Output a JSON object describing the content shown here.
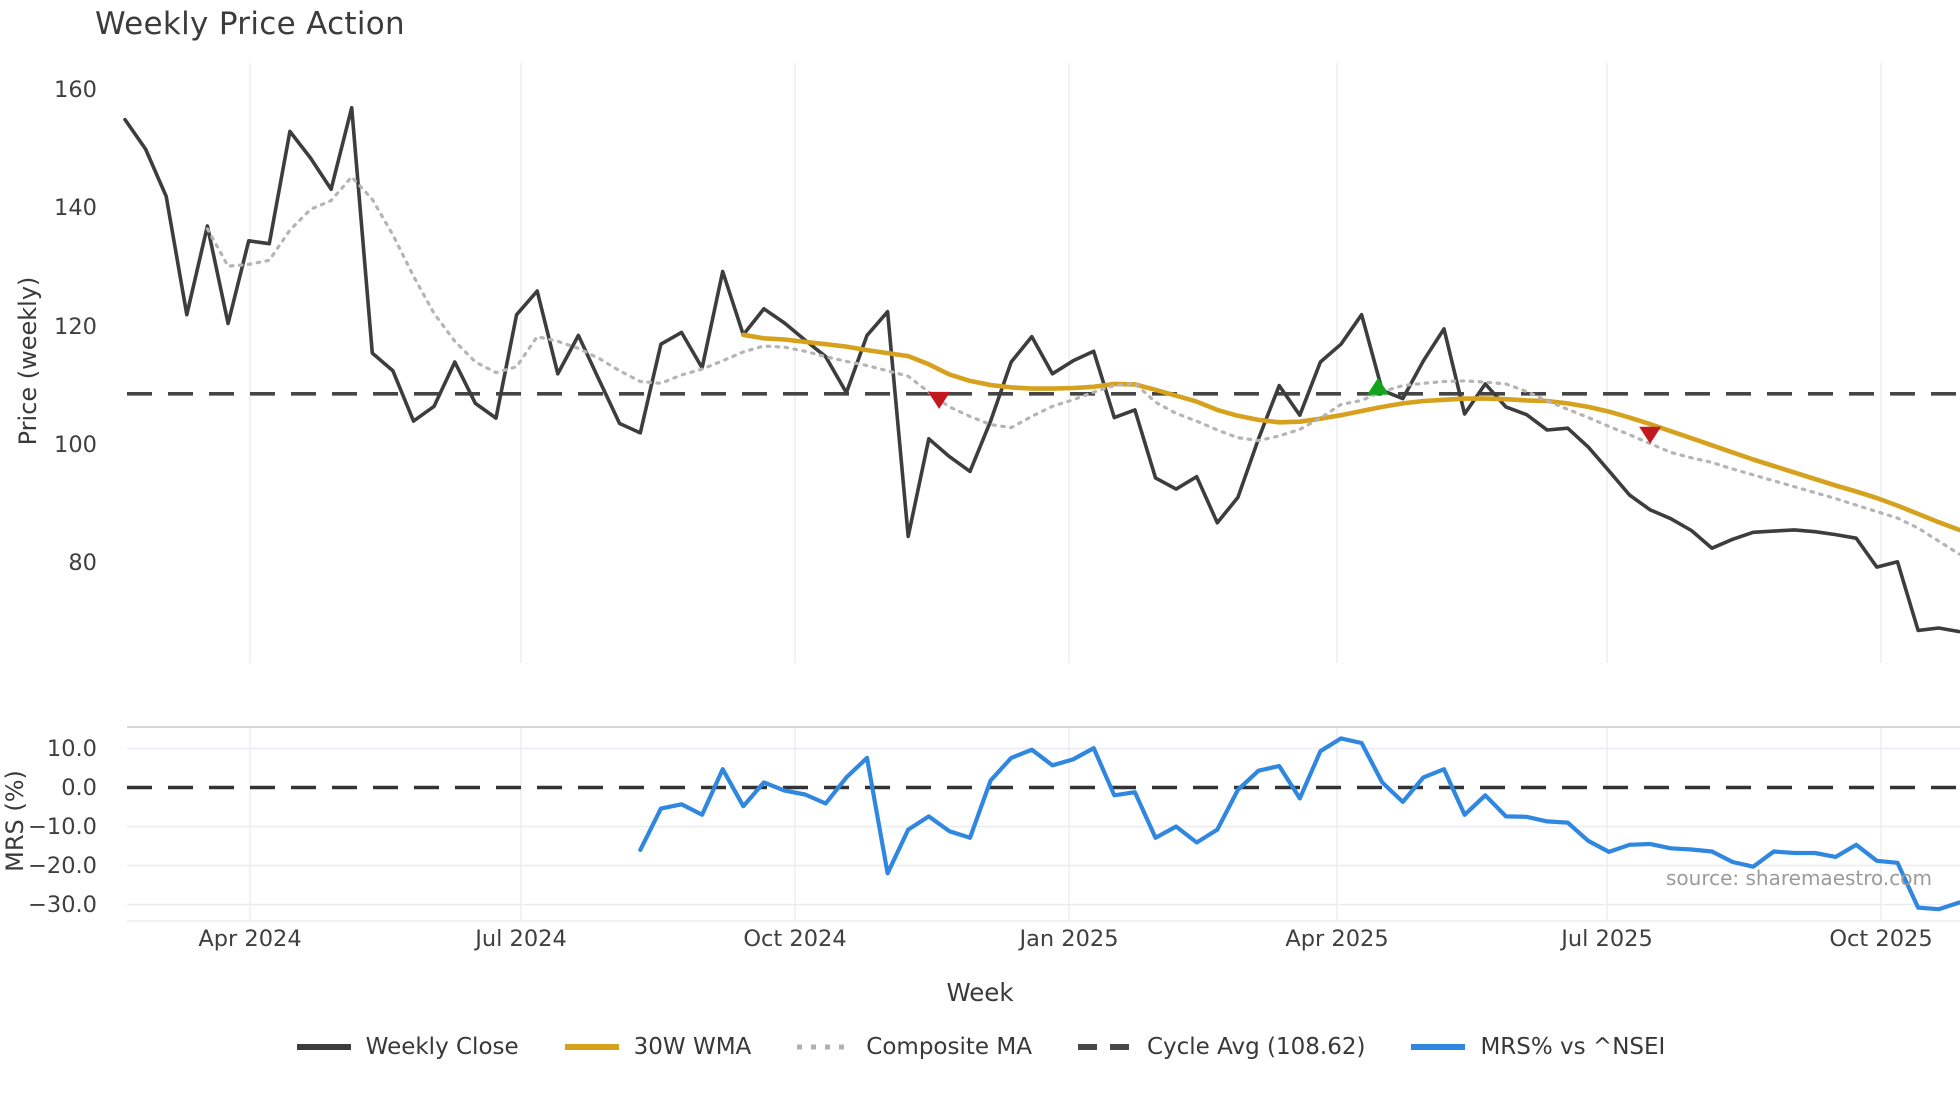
{
  "title": "Weekly Price Action",
  "source": "source: sharemaestro.com",
  "x_axis": {
    "label": "Week",
    "ticks": [
      "Apr 2024",
      "Jul 2024",
      "Oct 2024",
      "Jan 2025",
      "Apr 2025",
      "Jul 2025",
      "Oct 2025"
    ]
  },
  "price_axis": {
    "label": "Price (weekly)",
    "ticks": [
      {
        "v": 160,
        "label": "160"
      },
      {
        "v": 140,
        "label": "140"
      },
      {
        "v": 120,
        "label": "120"
      },
      {
        "v": 100,
        "label": "100"
      },
      {
        "v": 80,
        "label": "80"
      }
    ]
  },
  "mrs_axis": {
    "label": "MRS (%)",
    "ticks": [
      {
        "v": 10,
        "label": "10.0"
      },
      {
        "v": 0,
        "label": "0.0"
      },
      {
        "v": -10,
        "label": "−10.0"
      },
      {
        "v": -20,
        "label": "−20.0"
      },
      {
        "v": -30,
        "label": "−30.0"
      }
    ]
  },
  "legend": [
    {
      "label": "Weekly Close",
      "swatch": "solid",
      "color": "#3d3d3d"
    },
    {
      "label": "30W WMA",
      "swatch": "solid",
      "color": "#d6a21e"
    },
    {
      "label": "Composite MA",
      "swatch": "dotted",
      "color": "#b0b0b0"
    },
    {
      "label": "Cycle Avg (108.62)",
      "swatch": "dashed",
      "color": "#474747"
    },
    {
      "label": "MRS% vs ^NSEI",
      "swatch": "solid",
      "color": "#2f87e0"
    }
  ],
  "colors": {
    "close": "#3d3d3d",
    "wma": "#d6a21e",
    "composite": "#b5b5b5",
    "cycle": "#454545",
    "mrs": "#2f87e0",
    "marker_up": "#12a41b",
    "marker_down": "#c2191f",
    "grid": "#ebebf2",
    "panel_border": "#c9c9cf"
  },
  "chart_data": {
    "type": "line",
    "weeks": 90,
    "x_tick_labels": [
      "Apr 2024",
      "Jul 2024",
      "Oct 2024",
      "Jan 2025",
      "Apr 2025",
      "Jul 2025",
      "Oct 2025"
    ],
    "axis_ranges": {
      "price": [
        65,
        162
      ],
      "mrs": [
        -34,
        15
      ]
    },
    "cycle_avg": 108.62,
    "series": [
      {
        "panel": "price",
        "name": "Weekly Close",
        "color": "#3d3d3d",
        "style": "solid",
        "width": 3.6,
        "start": 0,
        "values": [
          155,
          150,
          142,
          122,
          137,
          120.5,
          134.5,
          134,
          153,
          148.5,
          143.2,
          157,
          115.5,
          112.5,
          104,
          106.5,
          114,
          107,
          104.5,
          122,
          126,
          112,
          118.5,
          111,
          103.6,
          102,
          117,
          119,
          113,
          129.3,
          118.6,
          123,
          120.6,
          117.7,
          114.9,
          108.8,
          118.5,
          122.5,
          84.5,
          101,
          98,
          95.5,
          104,
          114,
          118.3,
          112,
          114.2,
          115.8,
          104.6,
          105.9,
          94.4,
          92.5,
          94.6,
          86.8,
          91.1,
          101,
          110,
          105,
          114,
          117,
          122,
          109.2,
          107.8,
          114.2,
          119.6,
          105.2,
          110.3,
          106.4,
          105.1,
          102.5,
          102.8,
          99.6,
          95.6,
          91.5,
          89,
          87.5,
          85.5,
          82.5,
          84,
          85.2,
          85.4,
          85.6,
          85.3,
          84.8,
          84.2,
          79.3,
          80.2,
          68.6,
          69,
          68.4
        ]
      },
      {
        "panel": "price",
        "name": "30W WMA",
        "color": "#d6a21e",
        "style": "solid",
        "width": 4.6,
        "start": 30,
        "values": [
          118.6,
          118.0,
          117.8,
          117.4,
          117.0,
          116.6,
          116.0,
          115.5,
          115.0,
          113.6,
          111.9,
          110.8,
          110.1,
          109.7,
          109.5,
          109.5,
          109.6,
          109.8,
          110.3,
          110.2,
          109.3,
          108.3,
          107.3,
          105.9,
          104.9,
          104.2,
          103.8,
          103.9,
          104.4,
          105.0,
          105.7,
          106.4,
          107.0,
          107.4,
          107.6,
          107.8,
          107.8,
          107.7,
          107.5,
          107.4,
          107.0,
          106.4,
          105.6,
          104.6,
          103.5,
          102.3,
          101.1,
          99.9,
          98.7,
          97.5,
          96.4,
          95.3,
          94.2,
          93.1,
          92.1,
          91.0,
          89.7,
          88.3,
          86.9,
          85.6
        ]
      },
      {
        "panel": "price",
        "name": "Composite MA",
        "color": "#b5b5b5",
        "style": "dotted",
        "width": 3.2,
        "start": 4,
        "values": [
          136.5,
          130.2,
          130.5,
          131.2,
          136.3,
          139.8,
          141.3,
          145.3,
          141.5,
          135.5,
          128.5,
          122.2,
          117.5,
          114,
          112.2,
          113.2,
          118.3,
          117.5,
          116.3,
          114.6,
          112.5,
          110.7,
          110.4,
          111.8,
          112.8,
          114.2,
          115.7,
          116.7,
          116.5,
          115.8,
          114.9,
          114.1,
          113.4,
          112.5,
          111.6,
          108.9,
          106.4,
          104.8,
          103.4,
          102.9,
          104.8,
          106.5,
          107.6,
          108.9,
          110.0,
          110.4,
          107.2,
          105.3,
          104.0,
          102.5,
          101.2,
          100.7,
          101.5,
          102.6,
          104.5,
          106.8,
          107.5,
          109.0,
          110.0,
          110.4,
          110.7,
          110.8,
          110.6,
          110.3,
          109.0,
          107.4,
          106.0,
          104.6,
          103.1,
          101.7,
          100.2,
          98.7,
          97.8,
          97.0,
          95.9,
          94.9,
          93.9,
          92.9,
          91.9,
          90.9,
          89.8,
          88.7,
          87.6,
          85.9,
          83.7,
          81.5
        ]
      },
      {
        "panel": "mrs",
        "name": "MRS% vs ^NSEI",
        "color": "#2f87e0",
        "style": "solid",
        "width": 4.2,
        "start": 25,
        "values": [
          -16,
          -5.4,
          -4.3,
          -7,
          4.7,
          -4.8,
          1.3,
          -0.8,
          -1.8,
          -4.1,
          2.6,
          7.6,
          -22,
          -10.8,
          -7.4,
          -11.2,
          -12.9,
          1.8,
          7.6,
          9.7,
          5.7,
          7.2,
          10.1,
          -2.0,
          -1.2,
          -12.9,
          -10.0,
          -14.1,
          -10.8,
          -0.6,
          4.3,
          5.5,
          -2.8,
          9.3,
          12.6,
          11.4,
          1.3,
          -3.7,
          2.6,
          4.7,
          -7.0,
          -2.0,
          -7.4,
          -7.5,
          -8.7,
          -9.0,
          -13.7,
          -16.5,
          -14.7,
          -14.5,
          -15.6,
          -15.9,
          -16.4,
          -19.1,
          -20.3,
          -16.4,
          -16.8,
          -16.8,
          -17.8,
          -14.7,
          -18.8,
          -19.3,
          -30.8,
          -31.2,
          -29.5
        ]
      }
    ],
    "markers": [
      {
        "shape": "triangle-down",
        "color": "#c2191f",
        "week": 39.5,
        "price": 107.6
      },
      {
        "shape": "triangle-up",
        "color": "#12a41b",
        "week": 60.8,
        "price": 109.8
      },
      {
        "shape": "triangle-down",
        "color": "#c2191f",
        "week": 74,
        "price": 101.7
      }
    ]
  }
}
